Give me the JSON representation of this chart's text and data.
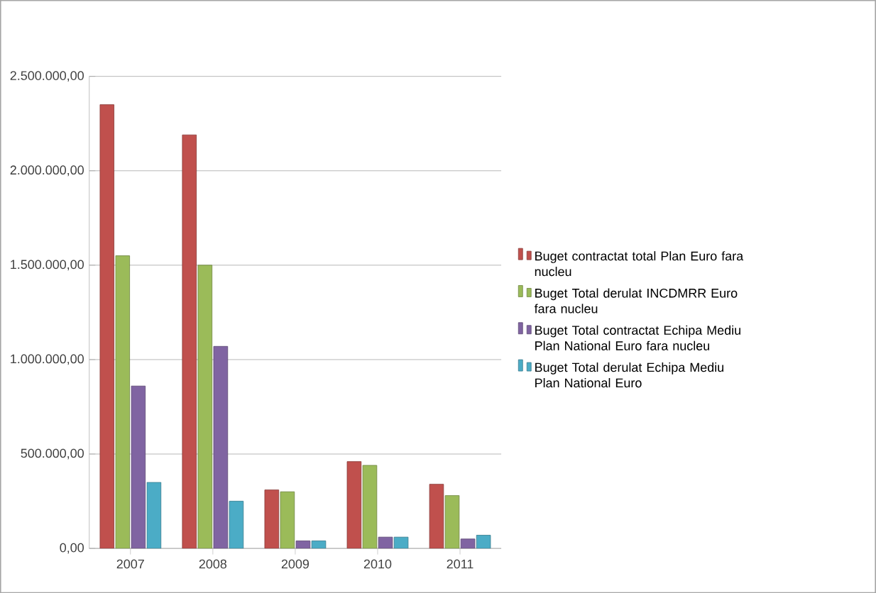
{
  "chart_data": {
    "type": "bar",
    "categories": [
      "2007",
      "2008",
      "2009",
      "2010",
      "2011"
    ],
    "series": [
      {
        "name": "Buget contractat total Plan Euro fara nucleu",
        "color": "#c0504d",
        "values": [
          2350000,
          2190000,
          310000,
          460000,
          340000
        ]
      },
      {
        "name": "Buget Total derulat INCDMRR Euro fara nucleu",
        "color": "#9bbb59",
        "values": [
          1550000,
          1500000,
          300000,
          440000,
          280000
        ]
      },
      {
        "name": "Buget Total contractat  Echipa Mediu Plan National Euro fara nucleu",
        "color": "#8064a2",
        "values": [
          860000,
          1070000,
          40000,
          60000,
          50000
        ]
      },
      {
        "name": "Buget Total derulat Echipa Mediu Plan National Euro",
        "color": "#4bacc6",
        "values": [
          350000,
          250000,
          40000,
          60000,
          70000
        ]
      }
    ],
    "ylim": [
      0,
      2500000
    ],
    "yticks": [
      {
        "value": 0,
        "label": "0,00"
      },
      {
        "value": 500000,
        "label": "500.000,00"
      },
      {
        "value": 1000000,
        "label": "1.000.000,00"
      },
      {
        "value": 1500000,
        "label": "1.500.000,00"
      },
      {
        "value": 2000000,
        "label": "2.000.000,00"
      },
      {
        "value": 2500000,
        "label": "2.500.000,00"
      }
    ],
    "grid": "y",
    "legend": "right"
  }
}
